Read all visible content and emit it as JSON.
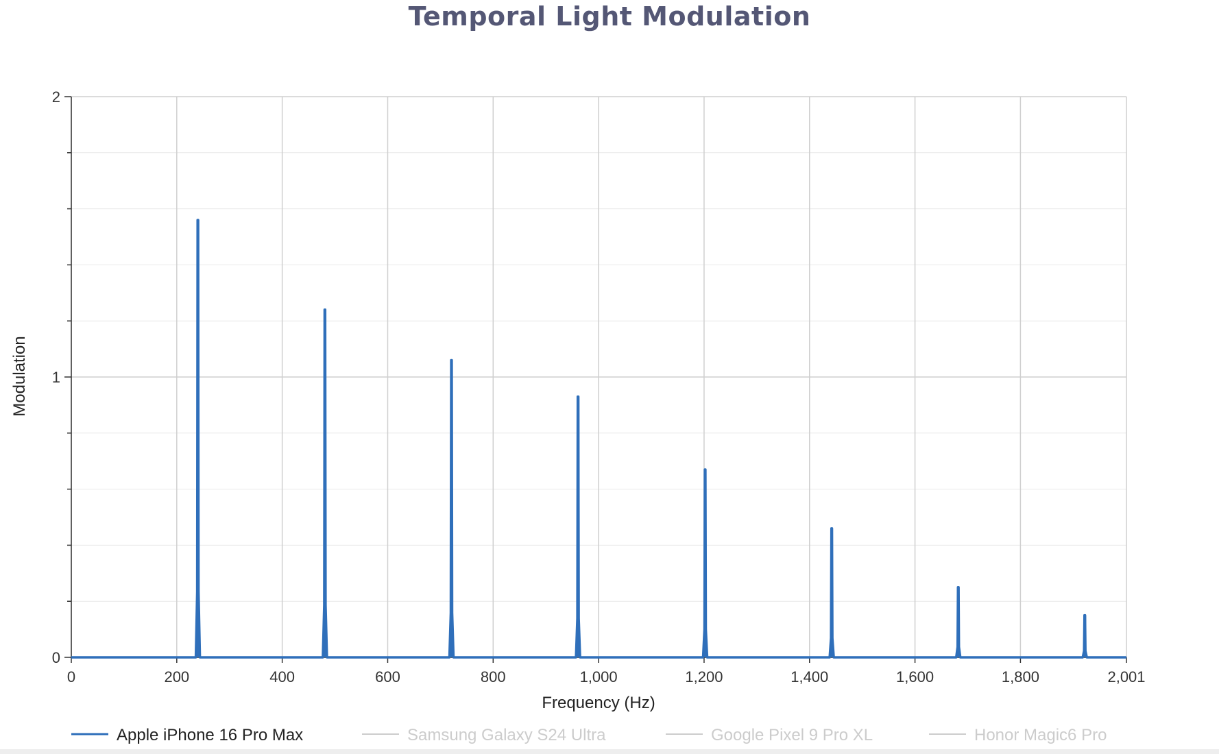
{
  "chart_data": {
    "type": "line",
    "title": "Temporal Light Modulation",
    "xlabel": "Frequency (Hz)",
    "ylabel": "Modulation",
    "xlim": [
      0,
      2001
    ],
    "ylim": [
      0,
      2
    ],
    "x_ticks": [
      0,
      200,
      400,
      600,
      800,
      1000,
      1200,
      1400,
      1600,
      1800,
      2001
    ],
    "x_tick_labels": [
      "0",
      "200",
      "400",
      "600",
      "800",
      "1,000",
      "1,200",
      "1,400",
      "1,600",
      "1,800",
      "2,001"
    ],
    "y_ticks": [
      0,
      1,
      2
    ],
    "y_tick_labels": [
      "0",
      "1",
      "2"
    ],
    "grid": true,
    "legend_position": "bottom",
    "series": [
      {
        "name": "Apple iPhone 16 Pro Max",
        "color": "#2f6fba",
        "visible": true,
        "peaks": [
          {
            "x": 240,
            "y": 1.56
          },
          {
            "x": 481,
            "y": 1.24
          },
          {
            "x": 721,
            "y": 1.06
          },
          {
            "x": 961,
            "y": 0.93
          },
          {
            "x": 1202,
            "y": 0.67
          },
          {
            "x": 1442,
            "y": 0.46
          },
          {
            "x": 1682,
            "y": 0.25
          },
          {
            "x": 1922,
            "y": 0.15
          }
        ]
      },
      {
        "name": "Samsung Galaxy S24 Ultra",
        "color": "#cccccc",
        "visible": false
      },
      {
        "name": "Google Pixel 9 Pro XL",
        "color": "#cccccc",
        "visible": false
      },
      {
        "name": "Honor Magic6 Pro",
        "color": "#cccccc",
        "visible": false
      }
    ]
  }
}
